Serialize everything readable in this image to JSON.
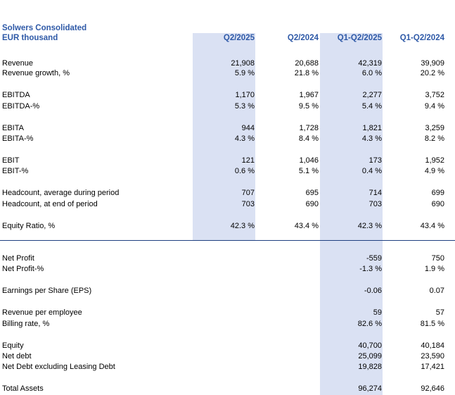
{
  "title": "Solwers Consolidated",
  "unit": "EUR thousand",
  "columns": [
    "Q2/2025",
    "Q2/2024",
    "Q1-Q2/2025",
    "Q1-Q2/2024"
  ],
  "rows": [
    {
      "label": "Revenue",
      "values": [
        "21,908",
        "20,688",
        "42,319",
        "39,909"
      ]
    },
    {
      "label": "Revenue growth, %",
      "values": [
        "5.9 %",
        "21.8 %",
        "6.0 %",
        "20.2 %"
      ]
    },
    {
      "label": "EBITDA",
      "values": [
        "1,170",
        "1,967",
        "2,277",
        "3,752"
      ]
    },
    {
      "label": "EBITDA-%",
      "values": [
        "5.3 %",
        "9.5 %",
        "5.4 %",
        "9.4 %"
      ]
    },
    {
      "label": "EBITA",
      "values": [
        "944",
        "1,728",
        "1,821",
        "3,259"
      ]
    },
    {
      "label": "EBITA-%",
      "values": [
        "4.3 %",
        "8.4 %",
        "4.3 %",
        "8.2 %"
      ]
    },
    {
      "label": "EBIT",
      "values": [
        "121",
        "1,046",
        "173",
        "1,952"
      ]
    },
    {
      "label": "EBIT-%",
      "values": [
        "0.6 %",
        "5.1 %",
        "0.4 %",
        "4.9 %"
      ]
    },
    {
      "label": "Headcount, average during period",
      "values": [
        "707",
        "695",
        "714",
        "699"
      ]
    },
    {
      "label": "Headcount, at end of period",
      "values": [
        "703",
        "690",
        "703",
        "690"
      ]
    },
    {
      "label": "Equity Ratio, %",
      "values": [
        "42.3 %",
        "43.4 %",
        "42.3 %",
        "43.4 %"
      ]
    },
    {
      "label": "Net Profit",
      "values": [
        "",
        "",
        "-559",
        "750"
      ]
    },
    {
      "label": "Net Profit-%",
      "values": [
        "",
        "",
        "-1.3 %",
        "1.9 %"
      ]
    },
    {
      "label": "Earnings per Share (EPS)",
      "values": [
        "",
        "",
        "-0.06",
        "0.07"
      ]
    },
    {
      "label": "Revenue per employee",
      "values": [
        "",
        "",
        "59",
        "57"
      ]
    },
    {
      "label": "Billing rate, %",
      "values": [
        "",
        "",
        "82.6 %",
        "81.5 %"
      ]
    },
    {
      "label": "Equity",
      "values": [
        "",
        "",
        "40,700",
        "40,184"
      ]
    },
    {
      "label": "Net debt",
      "values": [
        "",
        "",
        "25,099",
        "23,590"
      ]
    },
    {
      "label": "Net Debt excluding Leasing Debt",
      "values": [
        "",
        "",
        "19,828",
        "17,421"
      ]
    },
    {
      "label": "Total Assets",
      "values": [
        "",
        "",
        "96,274",
        "92,646"
      ]
    }
  ]
}
